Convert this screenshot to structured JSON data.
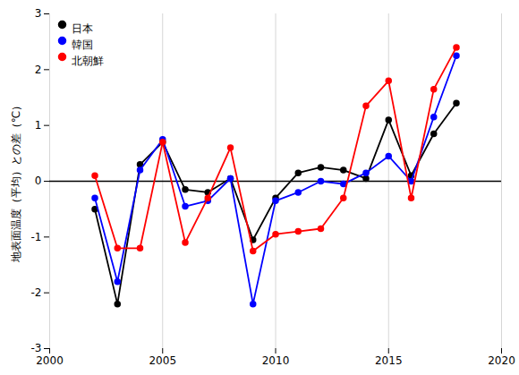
{
  "chart_data": {
    "type": "line",
    "ylabel": "地表面温度（平均）との差（℃）",
    "x": [
      2002,
      2003,
      2004,
      2005,
      2006,
      2007,
      2008,
      2009,
      2010,
      2011,
      2012,
      2013,
      2014,
      2015,
      2016,
      2017,
      2018
    ],
    "series": [
      {
        "name": "日本",
        "color": "#000000",
        "values": [
          -0.5,
          -2.2,
          0.3,
          0.7,
          -0.15,
          -0.2,
          0.05,
          -1.05,
          -0.3,
          0.15,
          0.25,
          0.2,
          0.05,
          1.1,
          0.1,
          0.85,
          1.4
        ]
      },
      {
        "name": "韓国",
        "color": "#0000ff",
        "values": [
          -0.3,
          -1.8,
          0.2,
          0.75,
          -0.45,
          -0.35,
          0.05,
          -2.2,
          -0.35,
          -0.2,
          0.0,
          -0.05,
          0.15,
          0.45,
          0.0,
          1.15,
          2.25
        ]
      },
      {
        "name": "北朝鮮",
        "color": "#ff0000",
        "values": [
          0.1,
          -1.2,
          -1.2,
          0.7,
          -1.1,
          -0.3,
          0.6,
          -1.25,
          -0.95,
          -0.9,
          -0.85,
          -0.3,
          1.35,
          1.8,
          -0.3,
          1.65,
          2.4
        ]
      }
    ],
    "xlim": [
      2000,
      2020
    ],
    "ylim": [
      -3,
      3
    ],
    "xticks": [
      2000,
      2005,
      2010,
      2015,
      2020
    ],
    "yticks": [
      -3,
      -2,
      -1,
      0,
      1,
      2,
      3
    ],
    "hlines": [
      0
    ],
    "grid": "x",
    "legend": "upper left",
    "marker": "o"
  }
}
